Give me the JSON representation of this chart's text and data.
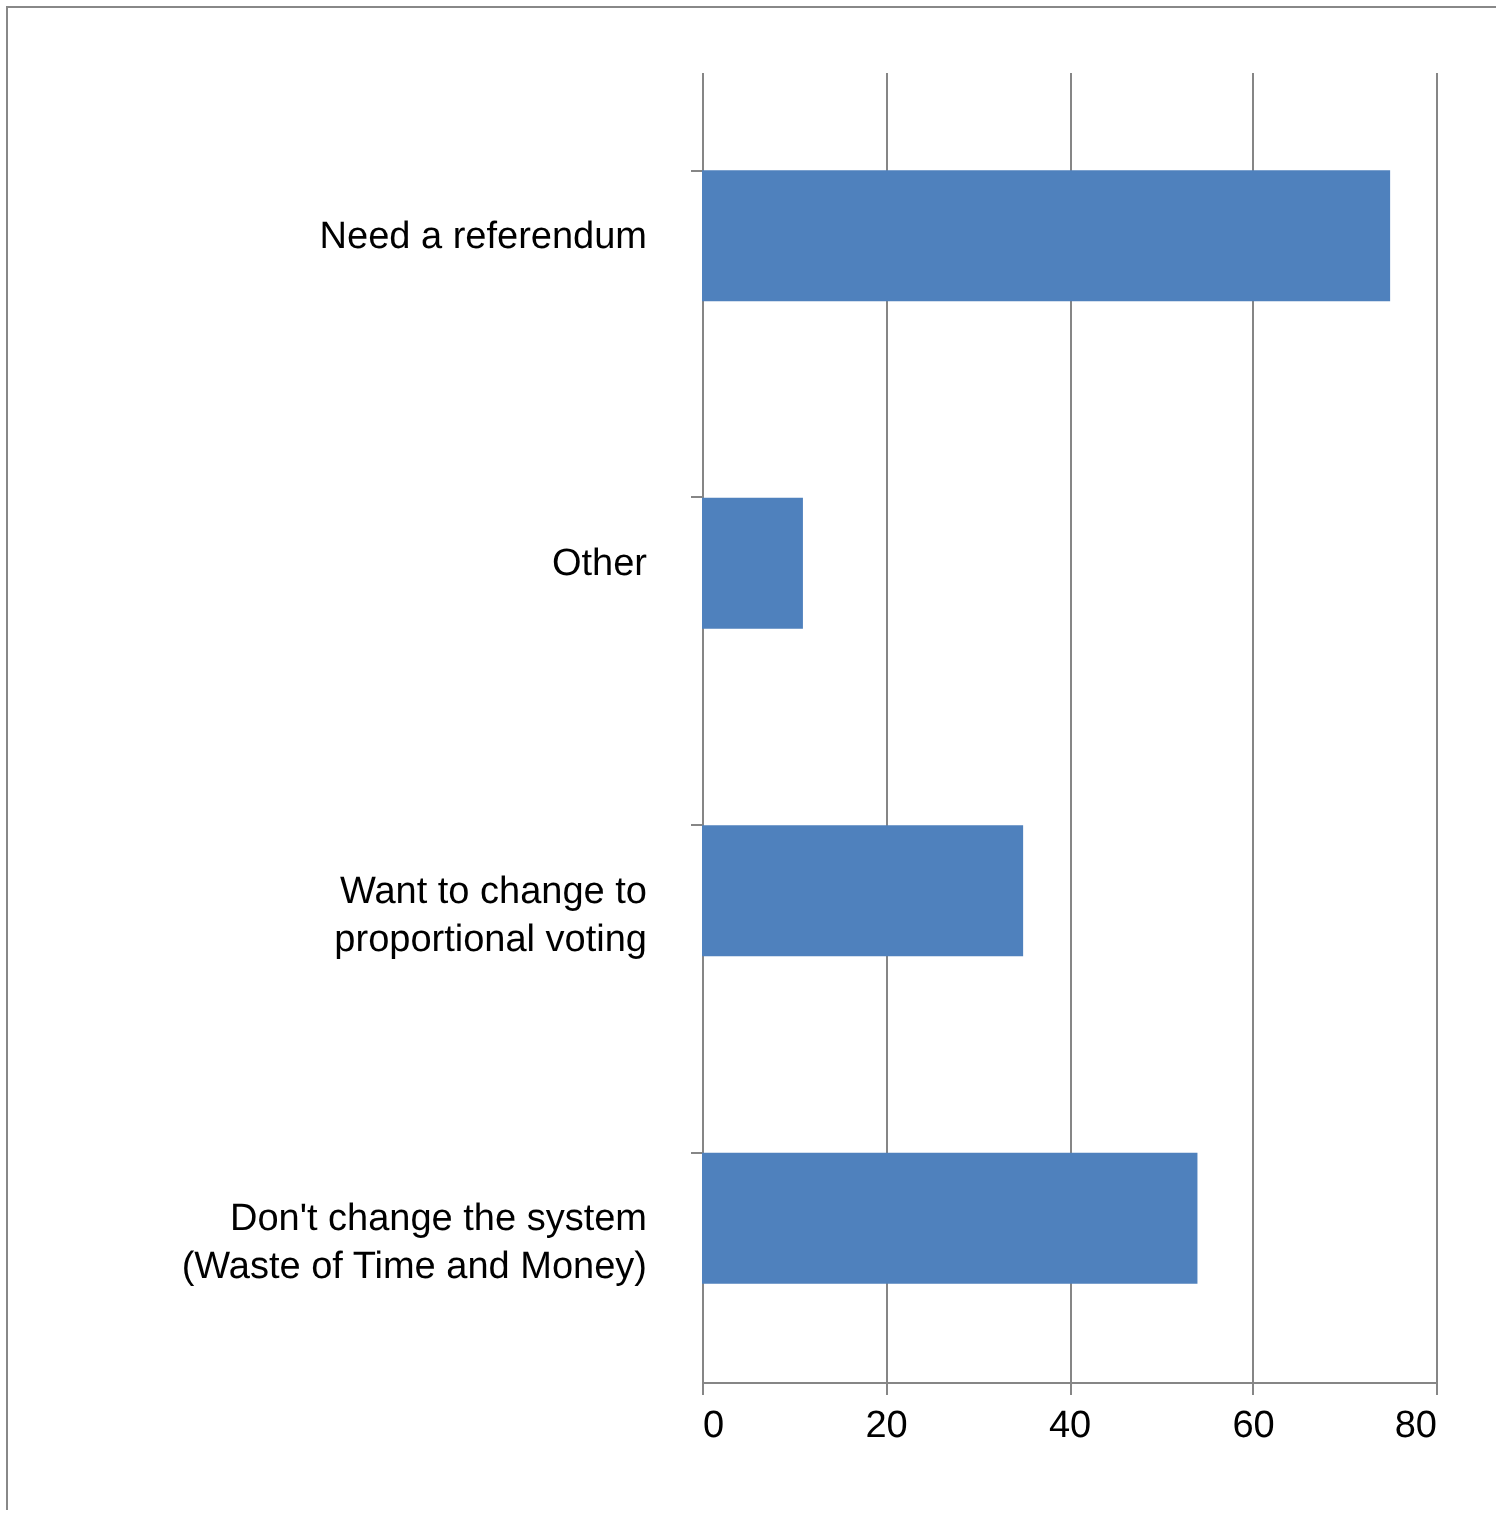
{
  "chart_data": {
    "type": "bar",
    "orientation": "horizontal",
    "categories": [
      "Need a referendum",
      "Other",
      "Want to change to\nproportional voting",
      "Don't change the system\n(Waste of Time and Money)"
    ],
    "values": [
      75,
      11,
      35,
      54
    ],
    "color": "#4f81bd",
    "xlim": [
      0,
      80
    ],
    "xticks": [
      0,
      20,
      40,
      60,
      80
    ],
    "grid": "x"
  }
}
